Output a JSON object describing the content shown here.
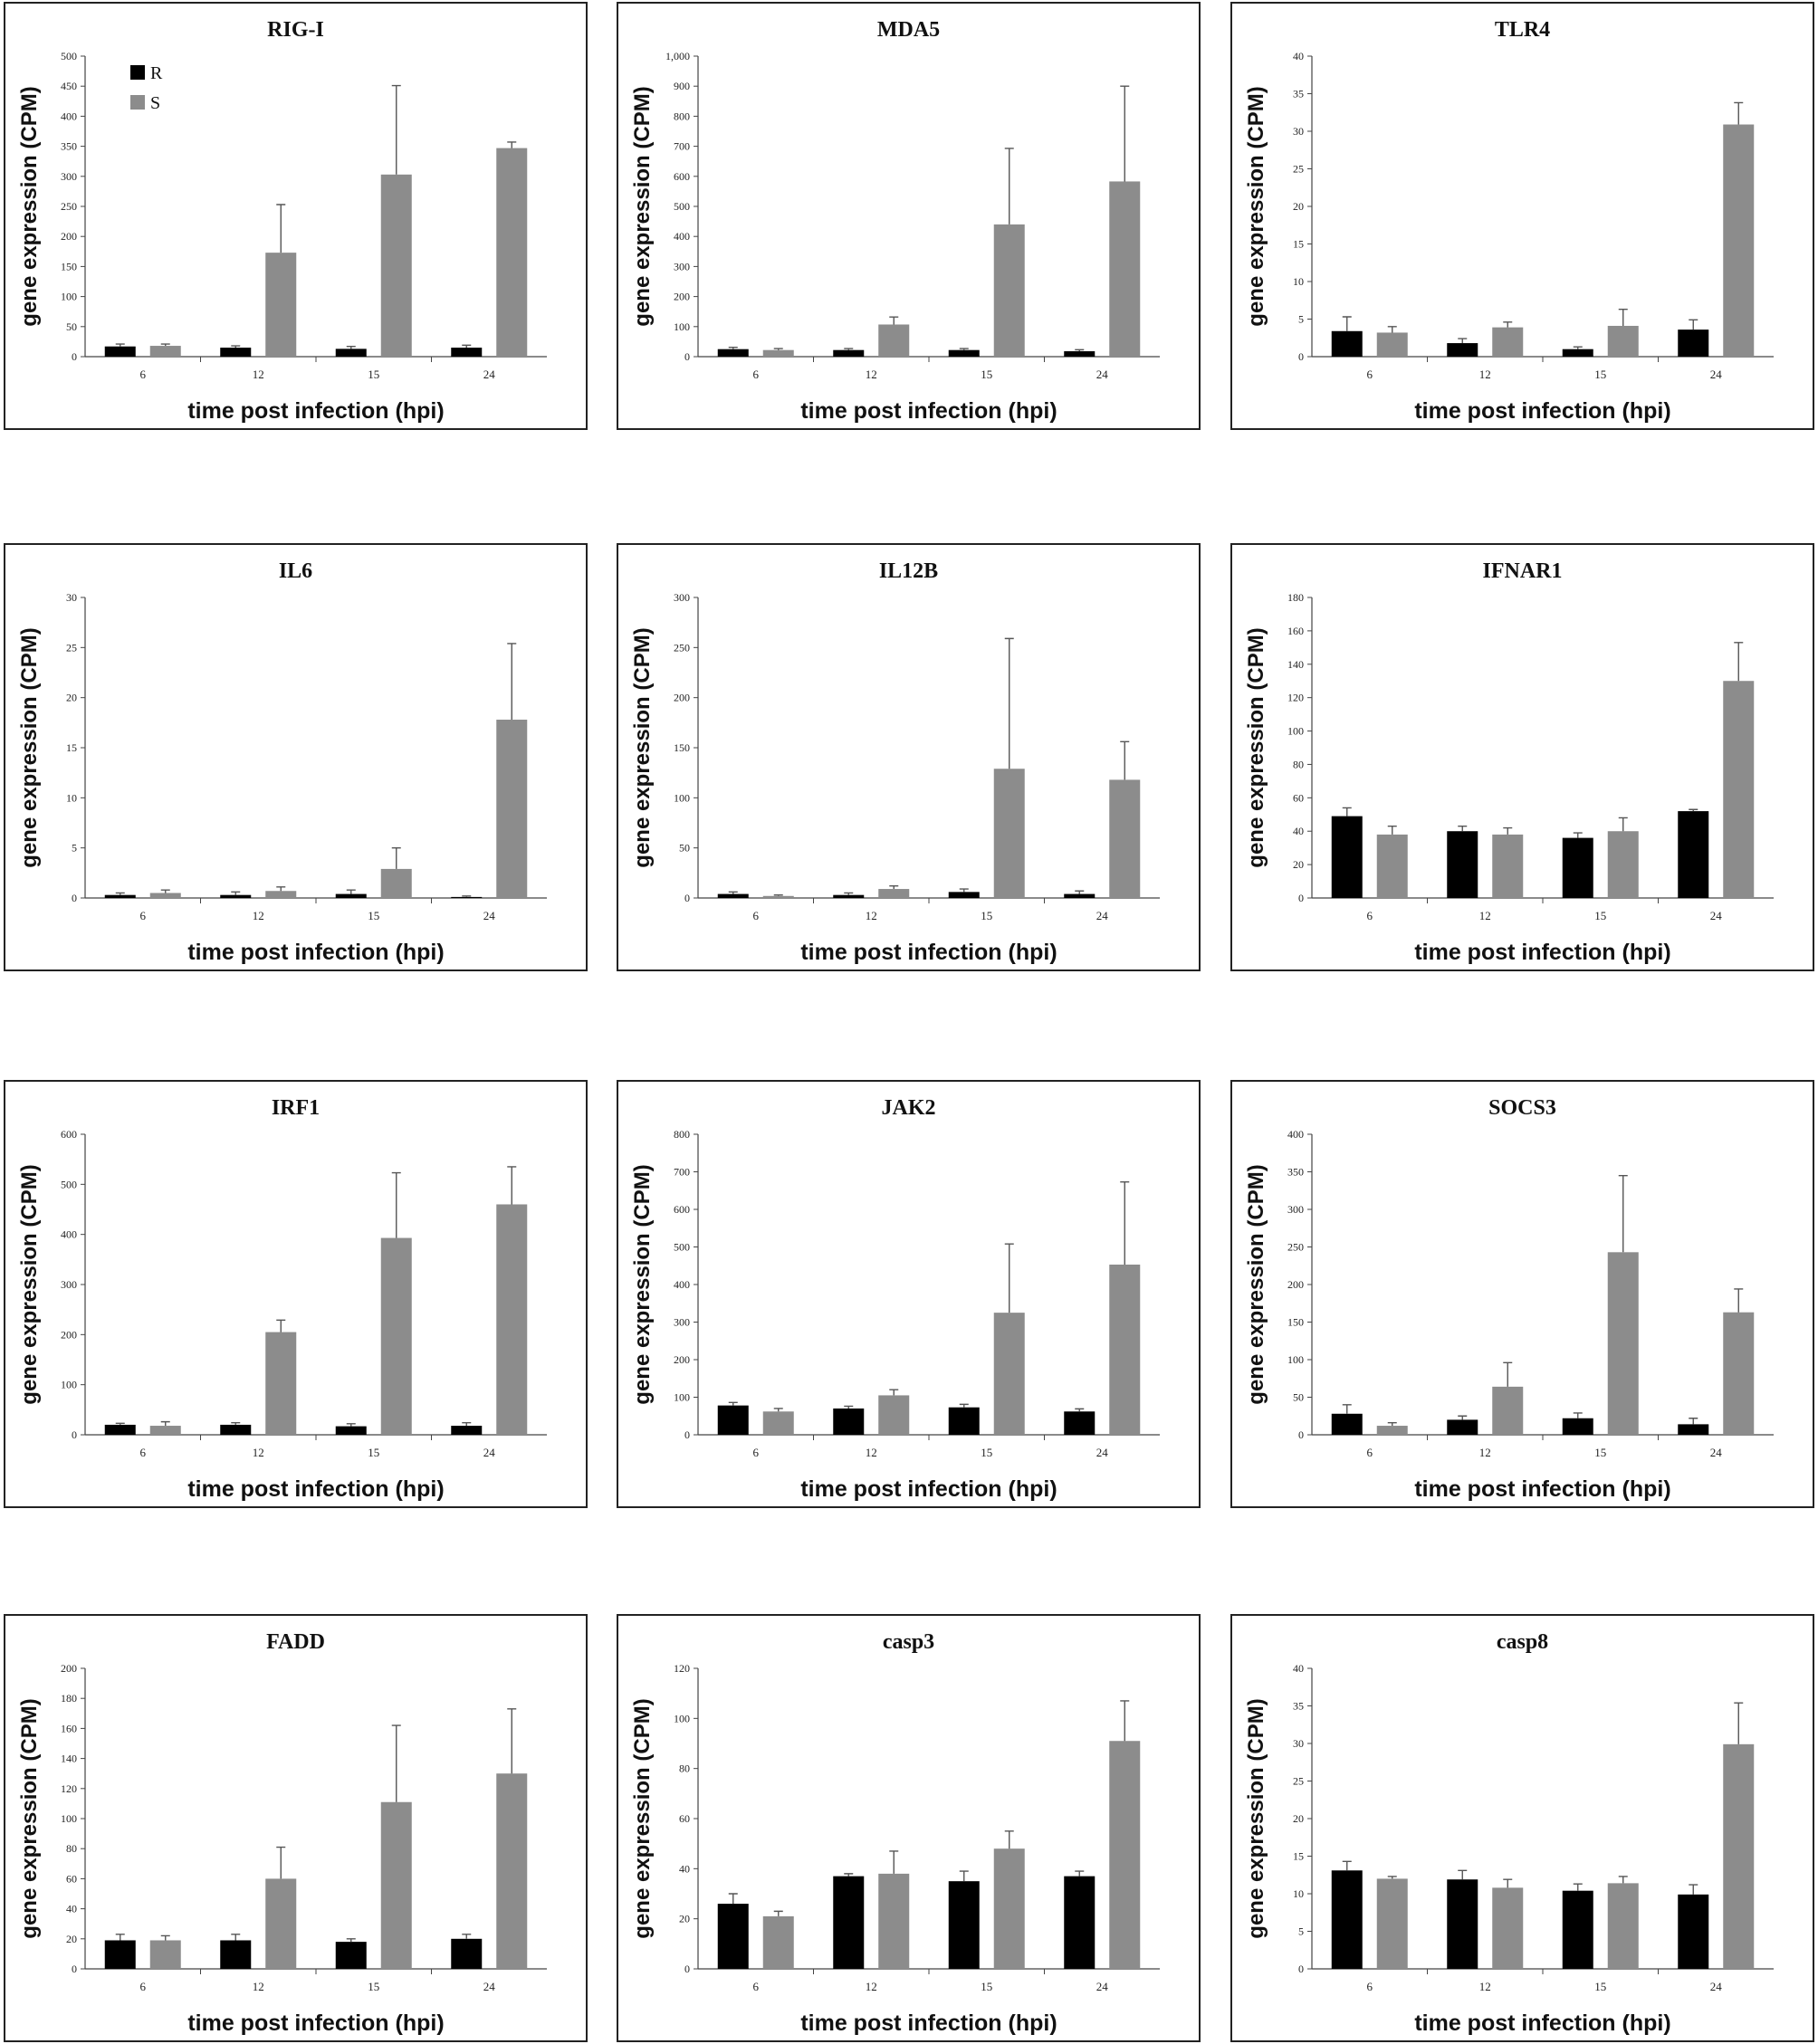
{
  "chart_data": [
    {
      "type": "bar",
      "title": "RIG-I",
      "xlabel": "time post infection (hpi)",
      "ylabel": "gene expression (CPM)",
      "categories": [
        "6",
        "12",
        "15",
        "24"
      ],
      "ylim": [
        0,
        500
      ],
      "yticks": [
        "0",
        "50",
        "100",
        "150",
        "200",
        "250",
        "300",
        "350",
        "400",
        "450",
        "500"
      ],
      "legend": {
        "position": "top-left",
        "entries": [
          "R",
          "S"
        ]
      },
      "series": [
        {
          "name": "R",
          "color": "#000000",
          "values": [
            17,
            15,
            13,
            15
          ],
          "errors": [
            4,
            3,
            4,
            4
          ]
        },
        {
          "name": "S",
          "color": "#8c8c8c",
          "values": [
            18,
            173,
            303,
            347
          ],
          "errors": [
            3,
            80,
            148,
            10
          ]
        }
      ]
    },
    {
      "type": "bar",
      "title": "MDA5",
      "xlabel": "time post infection (hpi)",
      "ylabel": "gene expression (CPM)",
      "categories": [
        "6",
        "12",
        "15",
        "24"
      ],
      "ylim": [
        0,
        1000
      ],
      "yticks": [
        "0",
        "100",
        "200",
        "300",
        "400",
        "500",
        "600",
        "700",
        "800",
        "900",
        "1,000"
      ],
      "series": [
        {
          "name": "R",
          "color": "#000000",
          "values": [
            25,
            22,
            22,
            18
          ],
          "errors": [
            6,
            5,
            5,
            5
          ]
        },
        {
          "name": "S",
          "color": "#8c8c8c",
          "values": [
            22,
            107,
            440,
            583
          ],
          "errors": [
            5,
            25,
            253,
            317
          ]
        }
      ]
    },
    {
      "type": "bar",
      "title": "TLR4",
      "xlabel": "time post infection (hpi)",
      "ylabel": "gene expression (CPM)",
      "categories": [
        "6",
        "12",
        "15",
        "24"
      ],
      "ylim": [
        0,
        40
      ],
      "yticks": [
        "0",
        "5",
        "10",
        "15",
        "20",
        "25",
        "30",
        "35",
        "40"
      ],
      "series": [
        {
          "name": "R",
          "color": "#000000",
          "values": [
            3.4,
            1.8,
            1.0,
            3.6
          ],
          "errors": [
            1.9,
            0.6,
            0.3,
            1.3
          ]
        },
        {
          "name": "S",
          "color": "#8c8c8c",
          "values": [
            3.2,
            3.9,
            4.1,
            30.9
          ],
          "errors": [
            0.8,
            0.7,
            2.2,
            2.9
          ]
        }
      ]
    },
    {
      "type": "bar",
      "title": "IL6",
      "xlabel": "time post infection (hpi)",
      "ylabel": "gene expression (CPM)",
      "categories": [
        "6",
        "12",
        "15",
        "24"
      ],
      "ylim": [
        0,
        30
      ],
      "yticks": [
        "0",
        "5",
        "10",
        "15",
        "20",
        "25",
        "30"
      ],
      "series": [
        {
          "name": "R",
          "color": "#000000",
          "values": [
            0.3,
            0.3,
            0.4,
            0.1
          ],
          "errors": [
            0.2,
            0.3,
            0.4,
            0.1
          ]
        },
        {
          "name": "S",
          "color": "#8c8c8c",
          "values": [
            0.5,
            0.7,
            2.9,
            17.8
          ],
          "errors": [
            0.3,
            0.4,
            2.1,
            7.6
          ]
        }
      ]
    },
    {
      "type": "bar",
      "title": "IL12B",
      "xlabel": "time post infection (hpi)",
      "ylabel": "gene expression (CPM)",
      "categories": [
        "6",
        "12",
        "15",
        "24"
      ],
      "ylim": [
        0,
        300
      ],
      "yticks": [
        "0",
        "50",
        "100",
        "150",
        "200",
        "250",
        "300"
      ],
      "series": [
        {
          "name": "R",
          "color": "#000000",
          "values": [
            4,
            3,
            6,
            4
          ],
          "errors": [
            2,
            2,
            3,
            3
          ]
        },
        {
          "name": "S",
          "color": "#8c8c8c",
          "values": [
            2,
            9,
            129,
            118
          ],
          "errors": [
            1,
            3,
            130,
            38
          ]
        }
      ]
    },
    {
      "type": "bar",
      "title": "IFNAR1",
      "xlabel": "time post infection (hpi)",
      "ylabel": "gene expression (CPM)",
      "categories": [
        "6",
        "12",
        "15",
        "24"
      ],
      "ylim": [
        0,
        180
      ],
      "yticks": [
        "0",
        "20",
        "40",
        "60",
        "80",
        "100",
        "120",
        "140",
        "160",
        "180"
      ],
      "series": [
        {
          "name": "R",
          "color": "#000000",
          "values": [
            49,
            40,
            36,
            52
          ],
          "errors": [
            5,
            3,
            3,
            1
          ]
        },
        {
          "name": "S",
          "color": "#8c8c8c",
          "values": [
            38,
            38,
            40,
            130
          ],
          "errors": [
            5,
            4,
            8,
            23
          ]
        }
      ]
    },
    {
      "type": "bar",
      "title": "IRF1",
      "xlabel": "time post infection (hpi)",
      "ylabel": "gene expression (CPM)",
      "categories": [
        "6",
        "12",
        "15",
        "24"
      ],
      "ylim": [
        0,
        600
      ],
      "yticks": [
        "0",
        "100",
        "200",
        "300",
        "400",
        "500",
        "600"
      ],
      "series": [
        {
          "name": "R",
          "color": "#000000",
          "values": [
            20,
            20,
            17,
            18
          ],
          "errors": [
            3,
            4,
            5,
            6
          ]
        },
        {
          "name": "S",
          "color": "#8c8c8c",
          "values": [
            18,
            205,
            393,
            460
          ],
          "errors": [
            8,
            24,
            130,
            75
          ]
        }
      ]
    },
    {
      "type": "bar",
      "title": "JAK2",
      "xlabel": "time post infection (hpi)",
      "ylabel": "gene expression (CPM)",
      "categories": [
        "6",
        "12",
        "15",
        "24"
      ],
      "ylim": [
        0,
        800
      ],
      "yticks": [
        "0",
        "100",
        "200",
        "300",
        "400",
        "500",
        "600",
        "700",
        "800"
      ],
      "series": [
        {
          "name": "R",
          "color": "#000000",
          "values": [
            78,
            70,
            73,
            62
          ],
          "errors": [
            8,
            6,
            8,
            7
          ]
        },
        {
          "name": "S",
          "color": "#8c8c8c",
          "values": [
            62,
            105,
            325,
            453
          ],
          "errors": [
            8,
            15,
            183,
            220
          ]
        }
      ]
    },
    {
      "type": "bar",
      "title": "SOCS3",
      "xlabel": "time post infection (hpi)",
      "ylabel": "gene expression (CPM)",
      "categories": [
        "6",
        "12",
        "15",
        "24"
      ],
      "ylim": [
        0,
        400
      ],
      "yticks": [
        "0",
        "50",
        "100",
        "150",
        "200",
        "250",
        "300",
        "350",
        "400"
      ],
      "series": [
        {
          "name": "R",
          "color": "#000000",
          "values": [
            28,
            20,
            22,
            14
          ],
          "errors": [
            12,
            5,
            7,
            8
          ]
        },
        {
          "name": "S",
          "color": "#8c8c8c",
          "values": [
            12,
            64,
            243,
            163
          ],
          "errors": [
            4,
            32,
            102,
            31
          ]
        }
      ]
    },
    {
      "type": "bar",
      "title": "FADD",
      "xlabel": "time post infection (hpi)",
      "ylabel": "gene expression (CPM)",
      "categories": [
        "6",
        "12",
        "15",
        "24"
      ],
      "ylim": [
        0,
        200
      ],
      "yticks": [
        "0",
        "20",
        "40",
        "60",
        "80",
        "100",
        "120",
        "140",
        "160",
        "180",
        "200"
      ],
      "series": [
        {
          "name": "R",
          "color": "#000000",
          "values": [
            19,
            19,
            18,
            20
          ],
          "errors": [
            4,
            4,
            2,
            3
          ]
        },
        {
          "name": "S",
          "color": "#8c8c8c",
          "values": [
            19,
            60,
            111,
            130
          ],
          "errors": [
            3,
            21,
            51,
            43
          ]
        }
      ]
    },
    {
      "type": "bar",
      "title": "casp3",
      "xlabel": "time post infection (hpi)",
      "ylabel": "gene expression (CPM)",
      "categories": [
        "6",
        "12",
        "15",
        "24"
      ],
      "ylim": [
        0,
        120
      ],
      "yticks": [
        "0",
        "20",
        "40",
        "60",
        "80",
        "100",
        "120"
      ],
      "series": [
        {
          "name": "R",
          "color": "#000000",
          "values": [
            26,
            37,
            35,
            37
          ],
          "errors": [
            4,
            1,
            4,
            2
          ]
        },
        {
          "name": "S",
          "color": "#8c8c8c",
          "values": [
            21,
            38,
            48,
            91
          ],
          "errors": [
            2,
            9,
            7,
            16
          ]
        }
      ]
    },
    {
      "type": "bar",
      "title": "casp8",
      "xlabel": "time post infection (hpi)",
      "ylabel": "gene expression (CPM)",
      "categories": [
        "6",
        "12",
        "15",
        "24"
      ],
      "ylim": [
        0,
        40
      ],
      "yticks": [
        "0",
        "5",
        "10",
        "15",
        "20",
        "25",
        "30",
        "35",
        "40"
      ],
      "series": [
        {
          "name": "R",
          "color": "#000000",
          "values": [
            13.1,
            11.9,
            10.4,
            9.9
          ],
          "errors": [
            1.2,
            1.2,
            0.9,
            1.3
          ]
        },
        {
          "name": "S",
          "color": "#8c8c8c",
          "values": [
            12.0,
            10.8,
            11.4,
            29.9
          ],
          "errors": [
            0.3,
            1.1,
            0.9,
            5.5
          ]
        }
      ]
    }
  ]
}
